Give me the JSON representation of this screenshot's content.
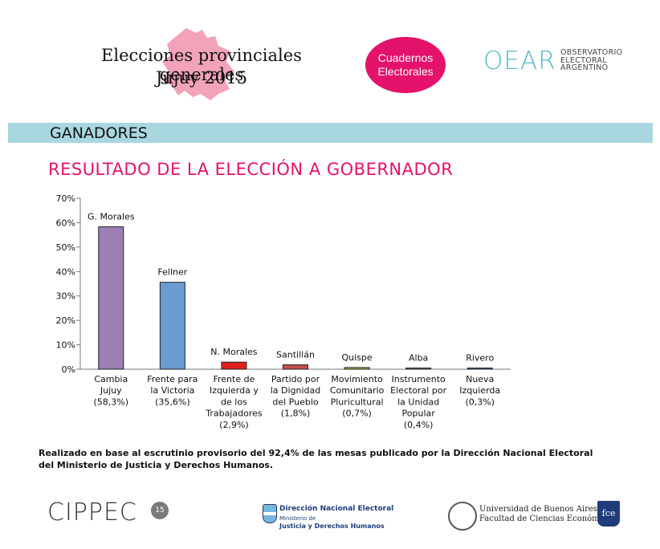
{
  "header": {
    "title_line1": "Elecciones provinciales generales",
    "title_line2": "Jujuy 2015",
    "badge_line1": "Cuadernos",
    "badge_line2": "Electorales",
    "oear_mark": "OEAR",
    "oear_line1": "OBSERVATORIO",
    "oear_line2": "ELECTORAL",
    "oear_line3": "ARGENTINO"
  },
  "section": {
    "band": "GANADORES",
    "title": "RESULTADO DE LA ELECCIÓN A GOBERNADOR"
  },
  "footnote": "Realizado en base al escrutinio provisorio del 92,4% de las mesas publicado por la Dirección Nacional Electoral del Ministerio de Justicia y Derechos Humanos.",
  "logos": {
    "cippec": "CIPPEC",
    "cippec_badge": "15",
    "dne_line1": "Dirección Nacional Electoral",
    "dne_line2": "Ministerio de",
    "dne_line3": "Justicia y Derechos Humanos",
    "uba_line1": "Universidad de Buenos Aires",
    "uba_line2": "Facultad de Ciencias Económicas",
    "fce": "fce"
  },
  "colors": {
    "accent": "#e4126b",
    "band": "#a9d7df",
    "oear": "#5ab7c8"
  },
  "chart_data": {
    "type": "bar",
    "title": "RESULTADO DE LA ELECCIÓN A GOBERNADOR",
    "ylim": [
      0,
      70
    ],
    "yticks": [
      "0%",
      "10%",
      "20%",
      "30%",
      "40%",
      "50%",
      "60%",
      "70%"
    ],
    "ytick_values": [
      0,
      10,
      20,
      30,
      40,
      50,
      60,
      70
    ],
    "categories": [
      {
        "lines": [
          "Cambia",
          "Jujuy",
          "(58,3%)"
        ]
      },
      {
        "lines": [
          "Frente para",
          "la Victoria",
          "(35,6%)"
        ]
      },
      {
        "lines": [
          "Frente de",
          "Izquierda y",
          "de los",
          "Trabajadores",
          "(2,9%)"
        ]
      },
      {
        "lines": [
          "Partido por",
          "la Dignidad",
          "del Pueblo",
          "(1,8%)"
        ]
      },
      {
        "lines": [
          "Movimiento",
          "Comunitario",
          "Pluricultural",
          "(0,7%)"
        ]
      },
      {
        "lines": [
          "Instrumento",
          "Electoral por",
          "la Unidad",
          "Popular",
          "(0,4%)"
        ]
      },
      {
        "lines": [
          "Nueva",
          "Izquierda",
          "(0,3%)"
        ]
      }
    ],
    "candidates": [
      "G. Morales",
      "Fellner",
      "N. Morales",
      "Santillán",
      "Quispe",
      "Alba",
      "Rivero"
    ],
    "values": [
      58.3,
      35.6,
      2.9,
      1.8,
      0.7,
      0.4,
      0.3
    ],
    "bar_colors": [
      "#9b7fb5",
      "#6a9bd1",
      "#e0201e",
      "#c0504d",
      "#9bbb59",
      "#7f7f7f",
      "#4f6fa8"
    ]
  }
}
